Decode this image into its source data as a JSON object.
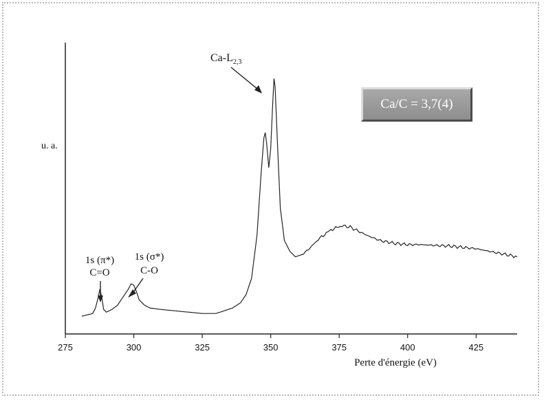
{
  "chart_data": {
    "type": "line",
    "title": "",
    "xlabel": "Perte d'énergie (eV)",
    "ylabel": "u. a.",
    "xlim": [
      275,
      440
    ],
    "ylim": [
      0,
      1
    ],
    "grid": false,
    "x_ticks": [
      275,
      300,
      325,
      350,
      375,
      400,
      425
    ],
    "series": [
      {
        "points": [
          [
            281,
            0.02
          ],
          [
            283,
            0.025
          ],
          [
            285,
            0.03
          ],
          [
            286,
            0.05
          ],
          [
            287,
            0.09
          ],
          [
            287.6,
            0.12
          ],
          [
            288.3,
            0.09
          ],
          [
            289,
            0.045
          ],
          [
            290,
            0.035
          ],
          [
            292,
            0.045
          ],
          [
            294,
            0.06
          ],
          [
            296,
            0.09
          ],
          [
            298,
            0.12
          ],
          [
            299,
            0.14
          ],
          [
            300,
            0.135
          ],
          [
            301,
            0.11
          ],
          [
            302,
            0.08
          ],
          [
            304,
            0.06
          ],
          [
            306,
            0.05
          ],
          [
            310,
            0.045
          ],
          [
            315,
            0.04
          ],
          [
            320,
            0.035
          ],
          [
            325,
            0.03
          ],
          [
            330,
            0.03
          ],
          [
            333,
            0.04
          ],
          [
            336,
            0.05
          ],
          [
            339,
            0.07
          ],
          [
            341,
            0.1
          ],
          [
            343,
            0.16
          ],
          [
            345,
            0.32
          ],
          [
            346.5,
            0.55
          ],
          [
            347.5,
            0.68
          ],
          [
            348,
            0.7
          ],
          [
            348.5,
            0.66
          ],
          [
            349.3,
            0.57
          ],
          [
            350,
            0.64
          ],
          [
            350.7,
            0.8
          ],
          [
            351.2,
            0.9
          ],
          [
            351.6,
            0.87
          ],
          [
            352.5,
            0.65
          ],
          [
            353.5,
            0.42
          ],
          [
            355,
            0.3
          ],
          [
            357,
            0.26
          ],
          [
            359,
            0.24
          ],
          [
            362,
            0.25
          ],
          [
            365,
            0.28
          ],
          [
            368,
            0.31
          ],
          [
            372,
            0.34
          ],
          [
            376,
            0.355
          ],
          [
            379,
            0.35
          ],
          [
            382,
            0.335
          ],
          [
            385,
            0.32
          ],
          [
            390,
            0.3
          ],
          [
            395,
            0.29
          ],
          [
            400,
            0.285
          ],
          [
            405,
            0.285
          ],
          [
            410,
            0.282
          ],
          [
            415,
            0.28
          ],
          [
            420,
            0.275
          ],
          [
            425,
            0.27
          ],
          [
            430,
            0.26
          ],
          [
            435,
            0.25
          ],
          [
            440,
            0.24
          ]
        ]
      }
    ],
    "annotations": [
      {
        "text": "1s (π*)",
        "line2": "C=O",
        "x": 287.6
      },
      {
        "text": "1s (σ*)",
        "line2": "C-O",
        "x": 299
      },
      {
        "text": "Ca-L",
        "subscript": "2,3",
        "x": 348.5
      }
    ],
    "inset_label": "Ca/C = 3,7(4)"
  }
}
